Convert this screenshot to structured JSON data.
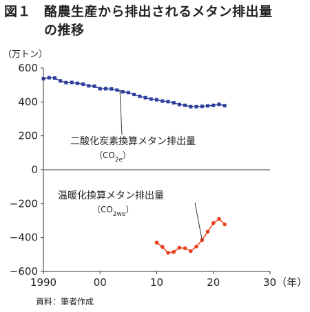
{
  "title": {
    "figure_no": "図１",
    "line1": "酪農生産から排出されるメタン排出量",
    "line2": "の推移"
  },
  "unit_label": "（万トン）",
  "source": "資料：筆者作成",
  "chart_data": {
    "type": "line",
    "x_tick_labels": [
      "1990",
      "00",
      "10",
      "20",
      "30（年）"
    ],
    "x_ticks": [
      1990,
      2000,
      2010,
      2020,
      2030
    ],
    "xlim": [
      1990,
      2030
    ],
    "y_ticks": [
      600,
      400,
      200,
      0,
      -200,
      -400,
      -600
    ],
    "y_tick_labels": [
      "600",
      "400",
      "200",
      "0",
      "−200",
      "−400",
      "−600"
    ],
    "ylim": [
      -600,
      600
    ],
    "grid": false,
    "series": [
      {
        "name": "二酸化炭素換算メタン排出量",
        "name_sub": "（CO2e）",
        "color": "#2e3e9c",
        "marker": "square",
        "x": [
          1990,
          1991,
          1992,
          1993,
          1994,
          1995,
          1996,
          1997,
          1998,
          1999,
          2000,
          2001,
          2002,
          2003,
          2004,
          2005,
          2006,
          2007,
          2008,
          2009,
          2010,
          2011,
          2012,
          2013,
          2014,
          2015,
          2016,
          2017,
          2018,
          2019,
          2020,
          2021,
          2022
        ],
        "values": [
          537,
          543,
          541,
          524,
          514,
          515,
          510,
          505,
          495,
          493,
          478,
          478,
          477,
          470,
          460,
          455,
          444,
          433,
          425,
          417,
          413,
          405,
          402,
          395,
          385,
          380,
          372,
          372,
          374,
          377,
          380,
          386,
          378
        ]
      },
      {
        "name": "温暖化換算メタン排出量",
        "name_sub": "（CO2we）",
        "color": "#e8401c",
        "marker": "circle",
        "x": [
          2010,
          2011,
          2012,
          2013,
          2014,
          2015,
          2016,
          2017,
          2018,
          2019,
          2020,
          2021,
          2022
        ],
        "values": [
          -430,
          -455,
          -490,
          -485,
          -460,
          -463,
          -480,
          -453,
          -415,
          -365,
          -315,
          -290,
          -322
        ]
      }
    ],
    "annotations": [
      {
        "text": "二酸化炭素換算メタン排出量",
        "sub_main": "（CO",
        "sub_index": "2e",
        "sub_end": "）"
      },
      {
        "text": "温暖化換算メタン排出量",
        "sub_main": "（CO",
        "sub_index": "2we",
        "sub_end": "）"
      }
    ]
  }
}
